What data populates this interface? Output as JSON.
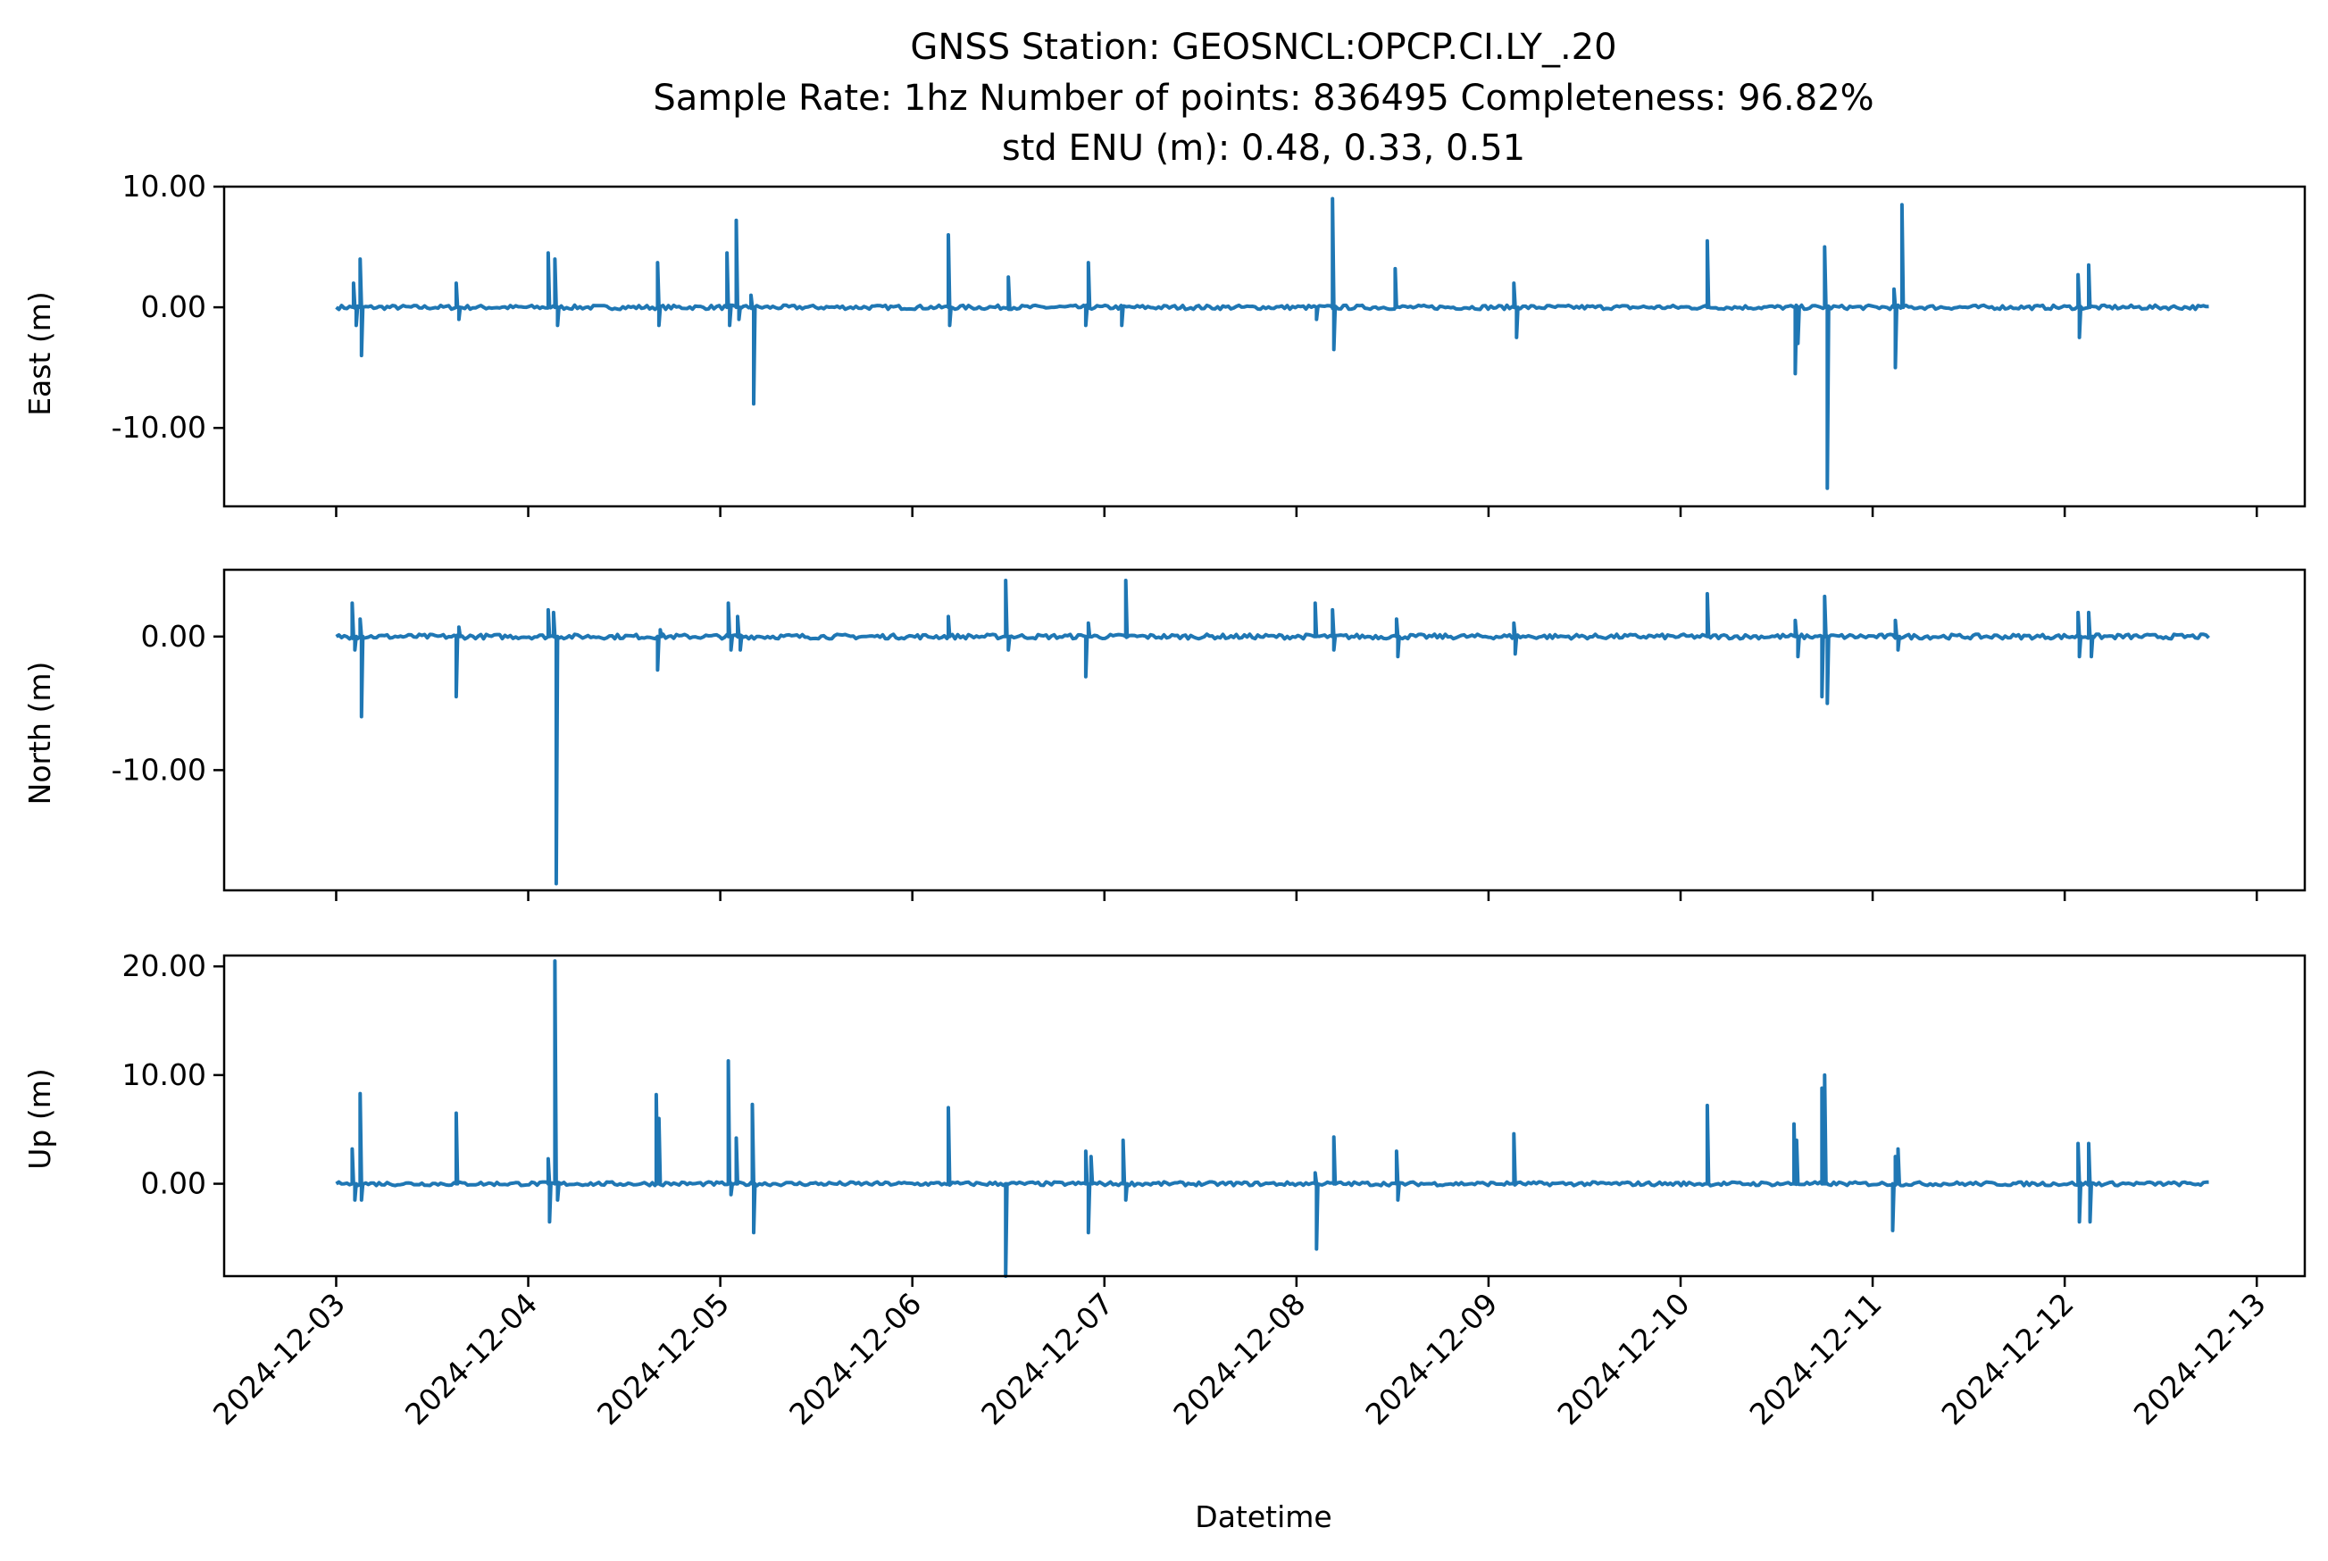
{
  "chart_data": {
    "type": "line",
    "title": {
      "line1": "GNSS Station: GEOSNCL:OPCP.CI.LY_.20",
      "line2": "Sample Rate: 1hz   Number of points: 836495    Completeness:  96.82%",
      "line3": "std ENU (m):  0.48, 0.33, 0.51"
    },
    "xlabel": "Datetime",
    "line_color": "#1f77b4",
    "x_ticks": [
      "2024-12-03",
      "2024-12-04",
      "2024-12-05",
      "2024-12-06",
      "2024-12-07",
      "2024-12-08",
      "2024-12-09",
      "2024-12-10",
      "2024-12-11",
      "2024-12-12",
      "2024-12-13"
    ],
    "xlim": [
      "2024-12-02T10:00",
      "2024-12-13T06:00"
    ],
    "data_range": [
      "2024-12-03T00:00",
      "2024-12-12T18:00"
    ],
    "panels": [
      {
        "ylabel": "East (m)",
        "ylim": [
          -16.5,
          10.0
        ],
        "yticks": [
          {
            "v": 10,
            "label": "10.00"
          },
          {
            "v": 0,
            "label": "0.00"
          },
          {
            "v": -10,
            "label": "-10.00"
          }
        ],
        "spikes": [
          {
            "t": "2024-12-03T02:10",
            "v": 2.0
          },
          {
            "t": "2024-12-03T02:30",
            "v": -1.5
          },
          {
            "t": "2024-12-03T03:00",
            "v": 4.0
          },
          {
            "t": "2024-12-03T03:10",
            "v": -4.0
          },
          {
            "t": "2024-12-03T15:00",
            "v": 2.0
          },
          {
            "t": "2024-12-03T15:20",
            "v": -1.0
          },
          {
            "t": "2024-12-04T02:30",
            "v": 4.5
          },
          {
            "t": "2024-12-04T03:20",
            "v": 4.0
          },
          {
            "t": "2024-12-04T03:40",
            "v": -1.5
          },
          {
            "t": "2024-12-04T16:10",
            "v": 3.7
          },
          {
            "t": "2024-12-04T16:20",
            "v": -1.5
          },
          {
            "t": "2024-12-05T00:50",
            "v": 4.5
          },
          {
            "t": "2024-12-05T01:10",
            "v": -1.5
          },
          {
            "t": "2024-12-05T02:00",
            "v": 7.2
          },
          {
            "t": "2024-12-05T02:20",
            "v": -1.0
          },
          {
            "t": "2024-12-05T03:50",
            "v": 1.0
          },
          {
            "t": "2024-12-05T04:10",
            "v": -8.0
          },
          {
            "t": "2024-12-06T04:30",
            "v": 6.0
          },
          {
            "t": "2024-12-06T04:40",
            "v": -1.5
          },
          {
            "t": "2024-12-06T12:00",
            "v": 2.5
          },
          {
            "t": "2024-12-06T22:00",
            "v": 3.7
          },
          {
            "t": "2024-12-06T21:40",
            "v": -1.5
          },
          {
            "t": "2024-12-07T02:10",
            "v": -1.5
          },
          {
            "t": "2024-12-08T02:30",
            "v": -1.0
          },
          {
            "t": "2024-12-08T04:30",
            "v": 9.0
          },
          {
            "t": "2024-12-08T04:40",
            "v": -3.5
          },
          {
            "t": "2024-12-08T12:20",
            "v": 3.2
          },
          {
            "t": "2024-12-09T03:10",
            "v": 2.0
          },
          {
            "t": "2024-12-09T03:30",
            "v": -2.5
          },
          {
            "t": "2024-12-10T03:20",
            "v": 5.5
          },
          {
            "t": "2024-12-10T14:20",
            "v": -5.5
          },
          {
            "t": "2024-12-10T14:40",
            "v": -3.0
          },
          {
            "t": "2024-12-10T18:00",
            "v": 5.0
          },
          {
            "t": "2024-12-10T18:20",
            "v": -15.0
          },
          {
            "t": "2024-12-11T02:40",
            "v": 1.5
          },
          {
            "t": "2024-12-11T02:50",
            "v": -5.0
          },
          {
            "t": "2024-12-11T03:40",
            "v": 8.5
          },
          {
            "t": "2024-12-12T01:40",
            "v": 2.7
          },
          {
            "t": "2024-12-12T01:50",
            "v": -2.5
          },
          {
            "t": "2024-12-12T03:00",
            "v": 3.5
          }
        ]
      },
      {
        "ylabel": "North (m)",
        "ylim": [
          -19.0,
          5.0
        ],
        "yticks": [
          {
            "v": 0,
            "label": "0.00"
          },
          {
            "v": -10,
            "label": "-10.00"
          }
        ],
        "spikes": [
          {
            "t": "2024-12-03T02:00",
            "v": 2.5
          },
          {
            "t": "2024-12-03T02:20",
            "v": -1.0
          },
          {
            "t": "2024-12-03T03:00",
            "v": 1.3
          },
          {
            "t": "2024-12-03T03:10",
            "v": -6.0
          },
          {
            "t": "2024-12-03T15:00",
            "v": -4.5
          },
          {
            "t": "2024-12-03T15:20",
            "v": 0.7
          },
          {
            "t": "2024-12-04T02:30",
            "v": 2.0
          },
          {
            "t": "2024-12-04T03:10",
            "v": 1.8
          },
          {
            "t": "2024-12-04T03:30",
            "v": -18.5
          },
          {
            "t": "2024-12-04T16:10",
            "v": -2.5
          },
          {
            "t": "2024-12-04T16:30",
            "v": 0.5
          },
          {
            "t": "2024-12-05T01:00",
            "v": 2.5
          },
          {
            "t": "2024-12-05T01:20",
            "v": -1.0
          },
          {
            "t": "2024-12-05T02:10",
            "v": 1.5
          },
          {
            "t": "2024-12-05T02:30",
            "v": -1.0
          },
          {
            "t": "2024-12-06T04:30",
            "v": 1.5
          },
          {
            "t": "2024-12-06T11:40",
            "v": 4.2
          },
          {
            "t": "2024-12-06T12:00",
            "v": -1.0
          },
          {
            "t": "2024-12-06T21:40",
            "v": -3.0
          },
          {
            "t": "2024-12-06T22:00",
            "v": 1.0
          },
          {
            "t": "2024-12-07T02:40",
            "v": 4.2
          },
          {
            "t": "2024-12-08T02:20",
            "v": 2.5
          },
          {
            "t": "2024-12-08T04:30",
            "v": 2.0
          },
          {
            "t": "2024-12-08T04:40",
            "v": -1.0
          },
          {
            "t": "2024-12-08T12:30",
            "v": 1.3
          },
          {
            "t": "2024-12-08T12:40",
            "v": -1.5
          },
          {
            "t": "2024-12-09T03:10",
            "v": 1.0
          },
          {
            "t": "2024-12-09T03:20",
            "v": -1.3
          },
          {
            "t": "2024-12-10T03:20",
            "v": 3.2
          },
          {
            "t": "2024-12-10T14:20",
            "v": 1.2
          },
          {
            "t": "2024-12-10T14:40",
            "v": -1.5
          },
          {
            "t": "2024-12-10T17:40",
            "v": -4.5
          },
          {
            "t": "2024-12-10T18:00",
            "v": 3.0
          },
          {
            "t": "2024-12-10T18:20",
            "v": -5.0
          },
          {
            "t": "2024-12-11T02:50",
            "v": 1.2
          },
          {
            "t": "2024-12-11T03:10",
            "v": -1.0
          },
          {
            "t": "2024-12-12T01:40",
            "v": 1.8
          },
          {
            "t": "2024-12-12T01:50",
            "v": -1.5
          },
          {
            "t": "2024-12-12T03:00",
            "v": 1.8
          },
          {
            "t": "2024-12-12T03:20",
            "v": -1.5
          }
        ]
      },
      {
        "ylabel": "Up (m)",
        "ylim": [
          -8.5,
          21.0
        ],
        "yticks": [
          {
            "v": 20,
            "label": "20.00"
          },
          {
            "v": 10,
            "label": "10.00"
          },
          {
            "v": 0,
            "label": "0.00"
          }
        ],
        "spikes": [
          {
            "t": "2024-12-03T02:00",
            "v": 3.2
          },
          {
            "t": "2024-12-03T02:20",
            "v": -1.5
          },
          {
            "t": "2024-12-03T03:00",
            "v": 8.3
          },
          {
            "t": "2024-12-03T03:10",
            "v": -1.5
          },
          {
            "t": "2024-12-03T15:00",
            "v": 6.5
          },
          {
            "t": "2024-12-04T02:30",
            "v": 2.3
          },
          {
            "t": "2024-12-04T02:40",
            "v": -3.5
          },
          {
            "t": "2024-12-04T03:20",
            "v": 20.5
          },
          {
            "t": "2024-12-04T03:40",
            "v": -1.5
          },
          {
            "t": "2024-12-04T16:00",
            "v": 8.2
          },
          {
            "t": "2024-12-04T16:20",
            "v": 6.0
          },
          {
            "t": "2024-12-05T01:00",
            "v": 11.3
          },
          {
            "t": "2024-12-05T01:20",
            "v": -1.0
          },
          {
            "t": "2024-12-05T02:00",
            "v": 4.2
          },
          {
            "t": "2024-12-05T04:00",
            "v": 7.3
          },
          {
            "t": "2024-12-05T04:10",
            "v": -4.5
          },
          {
            "t": "2024-12-06T04:30",
            "v": 7.0
          },
          {
            "t": "2024-12-06T11:40",
            "v": -8.5
          },
          {
            "t": "2024-12-06T21:40",
            "v": 3.0
          },
          {
            "t": "2024-12-06T22:00",
            "v": -4.5
          },
          {
            "t": "2024-12-06T22:20",
            "v": 2.5
          },
          {
            "t": "2024-12-07T02:20",
            "v": 4.0
          },
          {
            "t": "2024-12-07T02:40",
            "v": -1.5
          },
          {
            "t": "2024-12-08T02:20",
            "v": 1.0
          },
          {
            "t": "2024-12-08T02:30",
            "v": -6.0
          },
          {
            "t": "2024-12-08T04:40",
            "v": 4.3
          },
          {
            "t": "2024-12-08T12:30",
            "v": 3.0
          },
          {
            "t": "2024-12-08T12:40",
            "v": -1.5
          },
          {
            "t": "2024-12-09T03:10",
            "v": 4.6
          },
          {
            "t": "2024-12-10T03:20",
            "v": 7.2
          },
          {
            "t": "2024-12-10T14:10",
            "v": 5.5
          },
          {
            "t": "2024-12-10T14:30",
            "v": 4.0
          },
          {
            "t": "2024-12-10T17:40",
            "v": 8.8
          },
          {
            "t": "2024-12-10T18:00",
            "v": 10.0
          },
          {
            "t": "2024-12-11T02:30",
            "v": -4.3
          },
          {
            "t": "2024-12-11T02:50",
            "v": 2.5
          },
          {
            "t": "2024-12-11T03:10",
            "v": 3.2
          },
          {
            "t": "2024-12-12T01:40",
            "v": 3.7
          },
          {
            "t": "2024-12-12T01:50",
            "v": -3.5
          },
          {
            "t": "2024-12-12T03:00",
            "v": 3.7
          },
          {
            "t": "2024-12-12T03:10",
            "v": -3.5
          }
        ]
      }
    ]
  }
}
